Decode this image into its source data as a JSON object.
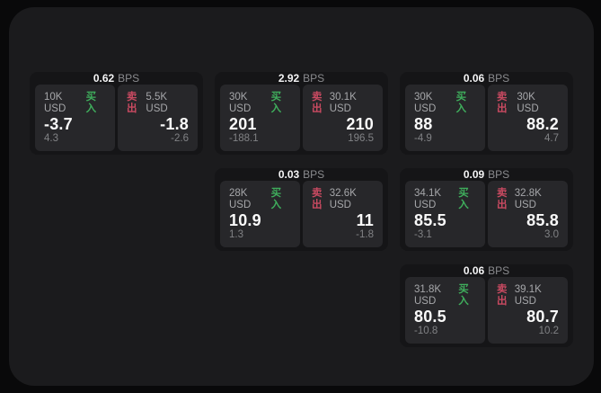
{
  "labels": {
    "bps_unit": "BPS",
    "buy": "买入",
    "sell": "卖出"
  },
  "colors": {
    "buy_green": "#3fae5c",
    "sell_red": "#c94a61",
    "panel_bg": "#1b1b1d",
    "card_bg": "#151517",
    "tile_bg": "#27272a"
  },
  "cards": [
    {
      "bps": "0.62",
      "buy": {
        "amount": "10K USD",
        "value": "-3.7",
        "delta": "4.3"
      },
      "sell": {
        "amount": "5.5K USD",
        "value": "-1.8",
        "delta": "-2.6"
      }
    },
    {
      "bps": "2.92",
      "buy": {
        "amount": "30K USD",
        "value": "201",
        "delta": "-188.1"
      },
      "sell": {
        "amount": "30.1K USD",
        "value": "210",
        "delta": "196.5"
      }
    },
    {
      "bps": "0.06",
      "buy": {
        "amount": "30K USD",
        "value": "88",
        "delta": "-4.9"
      },
      "sell": {
        "amount": "30K USD",
        "value": "88.2",
        "delta": "4.7"
      }
    },
    {
      "bps": "0.03",
      "buy": {
        "amount": "28K USD",
        "value": "10.9",
        "delta": "1.3"
      },
      "sell": {
        "amount": "32.6K USD",
        "value": "11",
        "delta": "-1.8"
      }
    },
    {
      "bps": "0.09",
      "buy": {
        "amount": "34.1K USD",
        "value": "85.5",
        "delta": "-3.1"
      },
      "sell": {
        "amount": "32.8K USD",
        "value": "85.8",
        "delta": "3.0"
      }
    },
    {
      "bps": "0.06",
      "buy": {
        "amount": "31.8K USD",
        "value": "80.5",
        "delta": "-10.8"
      },
      "sell": {
        "amount": "39.1K USD",
        "value": "80.7",
        "delta": "10.2"
      }
    }
  ]
}
